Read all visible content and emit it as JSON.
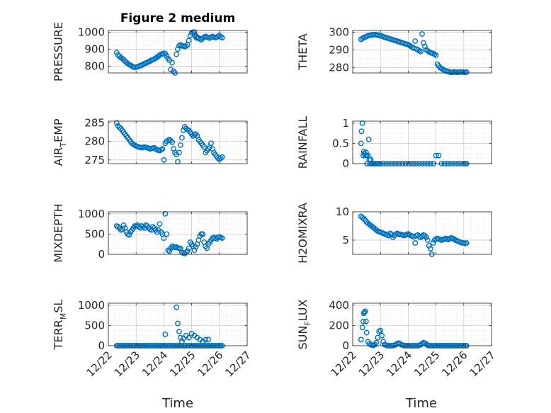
{
  "figure": {
    "title": "Figure 2 medium",
    "xlabel": "Time",
    "marker_color": "#0072BD",
    "x_ticks": [
      "12/22",
      "12/23",
      "12/24",
      "12/25",
      "12/26",
      "12/27"
    ]
  },
  "chart_data": [
    {
      "type": "scatter",
      "title": "Figure 2 medium",
      "ylabel": "PRESSURE",
      "ylabel_sub": "",
      "ylim": [
        760,
        1010
      ],
      "yticks": [
        800,
        900,
        1000
      ],
      "grid": true,
      "xlim": [
        0,
        5
      ],
      "x": [
        0.3,
        0.35,
        0.4,
        0.45,
        0.5,
        0.55,
        0.6,
        0.65,
        0.7,
        0.75,
        0.8,
        0.85,
        0.9,
        0.95,
        1.0,
        1.05,
        1.1,
        1.15,
        1.2,
        1.25,
        1.3,
        1.35,
        1.4,
        1.45,
        1.5,
        1.55,
        1.6,
        1.65,
        1.7,
        1.75,
        1.8,
        1.85,
        1.9,
        1.95,
        2.0,
        2.05,
        2.1,
        2.15,
        2.2,
        2.25,
        2.3,
        2.35,
        2.4,
        2.45,
        2.5,
        2.55,
        2.6,
        2.65,
        2.7,
        2.75,
        2.8,
        2.85,
        2.9,
        2.95,
        3.0,
        3.05,
        3.1,
        3.12,
        3.15,
        3.18,
        3.2,
        3.25,
        3.3,
        3.35,
        3.4,
        3.45,
        3.5,
        3.55,
        3.6,
        3.65,
        3.7,
        3.75,
        3.8,
        3.85,
        3.9,
        3.95,
        4.0,
        4.05,
        4.1
      ],
      "y": [
        880,
        865,
        858,
        850,
        845,
        838,
        830,
        822,
        815,
        810,
        805,
        800,
        795,
        793,
        795,
        797,
        800,
        803,
        806,
        810,
        815,
        818,
        822,
        826,
        830,
        835,
        838,
        842,
        847,
        852,
        858,
        865,
        870,
        873,
        876,
        873,
        860,
        845,
        835,
        780,
        820,
        770,
        760,
        870,
        900,
        920,
        925,
        920,
        918,
        915,
        918,
        925,
        950,
        980,
        995,
        1000,
        1000,
        985,
        970,
        975,
        965,
        965,
        960,
        955,
        965,
        970,
        975,
        972,
        968,
        965,
        970,
        975,
        972,
        968,
        970,
        975,
        980,
        972,
        968
      ],
      "series": [
        {
          "name": "",
          "values_ref": "y"
        }
      ]
    },
    {
      "type": "scatter",
      "title": "",
      "ylabel": "THETA",
      "ylabel_sub": "",
      "ylim": [
        277,
        301
      ],
      "yticks": [
        280,
        290,
        300
      ],
      "grid": true,
      "xlim": [
        0,
        5
      ],
      "x": [
        0.3,
        0.35,
        0.4,
        0.45,
        0.5,
        0.55,
        0.6,
        0.65,
        0.7,
        0.75,
        0.8,
        0.85,
        0.9,
        0.95,
        1.0,
        1.05,
        1.1,
        1.15,
        1.2,
        1.25,
        1.3,
        1.35,
        1.4,
        1.45,
        1.5,
        1.55,
        1.6,
        1.65,
        1.7,
        1.75,
        1.8,
        1.85,
        1.9,
        1.95,
        2.0,
        2.05,
        2.1,
        2.15,
        2.2,
        2.25,
        2.3,
        2.35,
        2.4,
        2.45,
        2.5,
        2.55,
        2.6,
        2.65,
        2.7,
        2.75,
        2.8,
        2.85,
        2.9,
        2.95,
        3.0,
        3.05,
        3.1,
        3.15,
        3.2,
        3.25,
        3.3,
        3.35,
        3.4,
        3.45,
        3.5,
        3.55,
        3.6,
        3.65,
        3.7,
        3.75,
        3.8,
        3.85,
        3.9,
        3.95,
        4.0,
        4.05,
        4.1
      ],
      "y": [
        296,
        296.5,
        297,
        297.3,
        297.6,
        298,
        298.2,
        298.3,
        298.5,
        298.6,
        298.7,
        298.5,
        298.4,
        298.2,
        298,
        297.8,
        297.5,
        297.2,
        297,
        296.7,
        296.5,
        296.2,
        296,
        295.7,
        295.5,
        295.2,
        295,
        294.7,
        294.5,
        294.2,
        294,
        293.7,
        293.5,
        293.2,
        293,
        292.5,
        292,
        291.5,
        291,
        295,
        290.5,
        290,
        289.5,
        289.2,
        299,
        294,
        292,
        290,
        289.5,
        289,
        288.5,
        288.2,
        288,
        287.5,
        287,
        282,
        281,
        280,
        279.5,
        279,
        278.5,
        278.2,
        278,
        277.8,
        277.5,
        277.3,
        277.4,
        277.6,
        277.5,
        277.3,
        277.4,
        277.5,
        277.6,
        277.5,
        277.4,
        277.3,
        277.5
      ],
      "series": [
        {
          "name": "",
          "values_ref": "y"
        }
      ]
    },
    {
      "type": "scatter",
      "title": "",
      "ylabel": "AIR",
      "ylabel_sub": "T",
      "ylabel_rest": "EMP",
      "ylim": [
        274,
        285.5
      ],
      "yticks": [
        275,
        280,
        285
      ],
      "grid": true,
      "xlim": [
        0,
        5
      ],
      "x": [
        0.3,
        0.35,
        0.4,
        0.45,
        0.5,
        0.55,
        0.6,
        0.65,
        0.7,
        0.75,
        0.8,
        0.85,
        0.9,
        0.95,
        1.0,
        1.05,
        1.1,
        1.15,
        1.2,
        1.25,
        1.3,
        1.35,
        1.4,
        1.45,
        1.5,
        1.55,
        1.6,
        1.65,
        1.7,
        1.75,
        1.8,
        1.85,
        1.9,
        1.95,
        2.0,
        2.05,
        2.1,
        2.15,
        2.2,
        2.25,
        2.3,
        2.35,
        2.4,
        2.45,
        2.5,
        2.55,
        2.6,
        2.65,
        2.7,
        2.75,
        2.8,
        2.85,
        2.9,
        2.95,
        3.0,
        3.05,
        3.1,
        3.15,
        3.2,
        3.25,
        3.3,
        3.35,
        3.4,
        3.45,
        3.5,
        3.55,
        3.6,
        3.65,
        3.7,
        3.75,
        3.8,
        3.85,
        3.9,
        3.95,
        4.0,
        4.05,
        4.1
      ],
      "y": [
        285,
        284.2,
        283.8,
        283.5,
        283,
        282.5,
        282,
        281.5,
        281,
        280.5,
        280,
        279.5,
        279.2,
        279,
        278.8,
        278.6,
        278.5,
        278.4,
        278.3,
        278.4,
        278.5,
        278.4,
        278.3,
        278.2,
        278,
        278.1,
        278.2,
        278.3,
        278,
        277.8,
        277.6,
        277.5,
        277.8,
        278,
        275,
        279.5,
        280,
        280.3,
        280.5,
        280.2,
        279.8,
        278,
        277,
        276.5,
        274.5,
        277,
        279,
        281,
        283,
        284,
        283.5,
        283.2,
        283,
        282.5,
        282,
        281.5,
        281.8,
        282,
        281.5,
        280.5,
        280,
        279.5,
        279,
        278.5,
        277,
        277.5,
        278,
        278.5,
        279.5,
        278,
        277,
        276.5,
        276,
        275.5,
        275.2,
        275.5,
        275.8
      ],
      "series": [
        {
          "name": "",
          "values_ref": "y"
        }
      ]
    },
    {
      "type": "scatter",
      "title": "",
      "ylabel": "RAINFALL",
      "ylabel_sub": "",
      "ylim": [
        0,
        1.05
      ],
      "yticks": [
        0,
        0.5,
        1
      ],
      "grid": true,
      "xlim": [
        0,
        5
      ],
      "x": [
        0.3,
        0.32,
        0.35,
        0.38,
        0.4,
        0.42,
        0.45,
        0.48,
        0.5,
        0.52,
        0.55,
        0.58,
        0.6,
        0.62,
        0.65,
        0.68,
        0.7,
        0.75,
        0.8,
        0.85,
        0.9,
        0.95,
        1.0,
        1.1,
        1.2,
        1.3,
        1.4,
        1.5,
        1.6,
        1.7,
        1.8,
        1.9,
        2.0,
        2.1,
        2.2,
        2.3,
        2.4,
        2.5,
        2.6,
        2.7,
        2.8,
        2.9,
        3.0,
        3.1,
        3.2,
        3.3,
        3.4,
        3.5,
        3.6,
        3.7,
        3.8,
        3.9,
        4.0,
        4.05,
        4.1
      ],
      "y": [
        0.5,
        0.8,
        1.0,
        0.2,
        0.3,
        0.25,
        0.2,
        0.28,
        0.2,
        0,
        0.2,
        0.6,
        0.1,
        0,
        0.1,
        0,
        0,
        0,
        0,
        0,
        0,
        0,
        0,
        0,
        0,
        0,
        0,
        0,
        0,
        0,
        0,
        0,
        0,
        0,
        0,
        0,
        0,
        0,
        0,
        0,
        0,
        0,
        0.2,
        0.2,
        0,
        0,
        0,
        0,
        0,
        0,
        0,
        0,
        0,
        0,
        0
      ],
      "series": [
        {
          "name": "",
          "values_ref": "y"
        }
      ]
    },
    {
      "type": "scatter",
      "title": "",
      "ylabel": "MIXDEPTH",
      "ylabel_sub": "",
      "ylim": [
        0,
        1050
      ],
      "yticks": [
        0,
        500,
        1000
      ],
      "grid": true,
      "xlim": [
        0,
        5
      ],
      "x": [
        0.3,
        0.35,
        0.4,
        0.45,
        0.5,
        0.55,
        0.6,
        0.65,
        0.7,
        0.75,
        0.8,
        0.85,
        0.9,
        0.95,
        1.0,
        1.05,
        1.1,
        1.15,
        1.2,
        1.25,
        1.3,
        1.35,
        1.4,
        1.45,
        1.5,
        1.55,
        1.6,
        1.65,
        1.7,
        1.75,
        1.8,
        1.85,
        1.9,
        1.95,
        2.0,
        2.05,
        2.1,
        2.15,
        2.2,
        2.25,
        2.3,
        2.35,
        2.4,
        2.45,
        2.5,
        2.55,
        2.6,
        2.65,
        2.7,
        2.75,
        2.8,
        2.85,
        2.9,
        2.95,
        3.0,
        3.05,
        3.1,
        3.15,
        3.2,
        3.25,
        3.3,
        3.35,
        3.4,
        3.45,
        3.5,
        3.55,
        3.6,
        3.65,
        3.7,
        3.75,
        3.8,
        3.85,
        3.9,
        3.95,
        4.0,
        4.05,
        4.1
      ],
      "y": [
        700,
        680,
        650,
        600,
        620,
        720,
        650,
        550,
        500,
        480,
        550,
        600,
        650,
        700,
        700,
        720,
        680,
        650,
        700,
        680,
        650,
        720,
        700,
        650,
        620,
        600,
        680,
        650,
        600,
        550,
        600,
        750,
        550,
        500,
        400,
        1000,
        500,
        100,
        80,
        150,
        200,
        180,
        170,
        180,
        160,
        150,
        140,
        50,
        30,
        20,
        50,
        80,
        150,
        300,
        250,
        200,
        100,
        180,
        250,
        350,
        450,
        500,
        500,
        300,
        200,
        150,
        250,
        300,
        350,
        400,
        420,
        400,
        380,
        420,
        430,
        410,
        400
      ],
      "series": [
        {
          "name": "",
          "values_ref": "y"
        }
      ]
    },
    {
      "type": "scatter",
      "title": "",
      "ylabel": "H2OMIXRA",
      "ylabel_sub": "",
      "ylim": [
        2.5,
        10
      ],
      "yticks": [
        5,
        10
      ],
      "grid": true,
      "xlim": [
        0,
        5
      ],
      "x": [
        0.3,
        0.35,
        0.4,
        0.45,
        0.5,
        0.55,
        0.6,
        0.65,
        0.7,
        0.75,
        0.8,
        0.85,
        0.9,
        0.95,
        1.0,
        1.05,
        1.1,
        1.15,
        1.2,
        1.25,
        1.3,
        1.35,
        1.4,
        1.45,
        1.5,
        1.55,
        1.6,
        1.65,
        1.7,
        1.75,
        1.8,
        1.85,
        1.9,
        1.95,
        2.0,
        2.05,
        2.1,
        2.15,
        2.2,
        2.25,
        2.3,
        2.35,
        2.4,
        2.45,
        2.5,
        2.55,
        2.6,
        2.65,
        2.7,
        2.75,
        2.8,
        2.85,
        2.9,
        2.95,
        3.0,
        3.05,
        3.1,
        3.15,
        3.2,
        3.25,
        3.3,
        3.35,
        3.4,
        3.45,
        3.5,
        3.55,
        3.6,
        3.65,
        3.7,
        3.75,
        3.8,
        3.85,
        3.9,
        3.95,
        4.0,
        4.05,
        4.1
      ],
      "y": [
        9.2,
        9,
        8.8,
        8.5,
        8.2,
        8,
        7.8,
        7.6,
        7.4,
        7.2,
        7,
        6.8,
        6.6,
        6.5,
        6.4,
        6.3,
        6.2,
        6.1,
        6,
        5.9,
        5.8,
        6.2,
        6,
        5.5,
        5.8,
        6,
        6.2,
        6.1,
        6,
        6,
        5.9,
        5.8,
        5.9,
        6,
        6.1,
        5.9,
        5.8,
        5.7,
        5.6,
        4.5,
        5.8,
        5.9,
        5.6,
        5.5,
        5.7,
        5.9,
        5.8,
        5.5,
        5,
        4,
        3.5,
        2.5,
        4.5,
        5,
        5.2,
        5.3,
        5.2,
        5.1,
        5,
        5.1,
        5.2,
        5.3,
        5.2,
        5.1,
        5.3,
        5.4,
        5.3,
        5.2,
        5,
        4.9,
        4.8,
        4.7,
        4.6,
        4.5,
        4.5,
        4.4,
        4.5
      ],
      "series": [
        {
          "name": "",
          "values_ref": "y"
        }
      ]
    },
    {
      "type": "scatter",
      "title": "",
      "ylabel": "TERR",
      "ylabel_sub": "M",
      "ylabel_rest": "SL",
      "ylim": [
        0,
        1050
      ],
      "yticks": [
        0,
        500,
        1000
      ],
      "grid": true,
      "xlim": [
        0,
        5
      ],
      "x": [
        0.3,
        0.35,
        0.4,
        0.45,
        0.5,
        0.55,
        0.6,
        0.65,
        0.7,
        0.75,
        0.8,
        0.85,
        0.9,
        0.95,
        1.0,
        1.05,
        1.1,
        1.15,
        1.2,
        1.25,
        1.3,
        1.35,
        1.4,
        1.45,
        1.5,
        1.55,
        1.6,
        1.65,
        1.7,
        1.75,
        1.8,
        1.85,
        1.9,
        1.95,
        2.0,
        2.05,
        2.1,
        2.15,
        2.2,
        2.25,
        2.3,
        2.35,
        2.4,
        2.45,
        2.5,
        2.55,
        2.6,
        2.65,
        2.7,
        2.75,
        2.8,
        2.85,
        2.9,
        2.95,
        3.0,
        3.05,
        3.1,
        3.15,
        3.2,
        3.25,
        3.3,
        3.35,
        3.4,
        3.45,
        3.5,
        3.55,
        3.6,
        3.65,
        3.7,
        3.75,
        3.8,
        3.85,
        3.9,
        3.95,
        4.0,
        4.05,
        4.1,
        2.05,
        2.45,
        2.5,
        2.55,
        2.6,
        2.65,
        2.7,
        2.8,
        2.9,
        3.0,
        3.1,
        3.2,
        3.3,
        3.4,
        3.5,
        3.6
      ],
      "y": [
        0,
        0,
        0,
        0,
        0,
        0,
        0,
        0,
        0,
        0,
        0,
        0,
        0,
        0,
        0,
        0,
        0,
        0,
        0,
        0,
        0,
        0,
        0,
        0,
        0,
        0,
        0,
        0,
        0,
        0,
        0,
        0,
        0,
        0,
        0,
        0,
        0,
        0,
        0,
        0,
        0,
        0,
        0,
        0,
        0,
        0,
        0,
        0,
        0,
        0,
        0,
        0,
        0,
        0,
        0,
        0,
        0,
        0,
        0,
        0,
        0,
        0,
        0,
        0,
        0,
        0,
        0,
        0,
        0,
        0,
        0,
        0,
        0,
        0,
        0,
        0,
        0,
        280,
        950,
        550,
        350,
        200,
        100,
        180,
        250,
        200,
        300,
        250,
        200,
        150,
        100,
        150,
        150
      ],
      "series": [
        {
          "name": "",
          "values_ref": "y"
        }
      ]
    },
    {
      "type": "scatter",
      "title": "",
      "ylabel": "SUN",
      "ylabel_sub": "F",
      "ylabel_rest": "LUX",
      "ylim": [
        0,
        420
      ],
      "yticks": [
        0,
        200,
        400
      ],
      "grid": true,
      "xlim": [
        0,
        5
      ],
      "x": [
        0.3,
        0.35,
        0.38,
        0.4,
        0.42,
        0.45,
        0.48,
        0.5,
        0.55,
        0.6,
        0.65,
        0.7,
        0.75,
        0.8,
        0.85,
        0.9,
        0.95,
        1.0,
        1.05,
        1.1,
        1.15,
        1.2,
        1.25,
        1.3,
        1.35,
        1.4,
        1.45,
        1.5,
        1.55,
        1.6,
        1.65,
        1.7,
        1.75,
        1.8,
        1.85,
        1.9,
        1.95,
        2.0,
        2.05,
        2.1,
        2.15,
        2.2,
        2.25,
        2.3,
        2.35,
        2.4,
        2.45,
        2.5,
        2.55,
        2.6,
        2.65,
        2.7,
        2.75,
        2.8,
        2.85,
        2.9,
        2.95,
        3.0,
        3.05,
        3.1,
        3.15,
        3.2,
        3.25,
        3.3,
        3.35,
        3.4,
        3.45,
        3.5,
        3.55,
        3.6,
        3.65,
        3.7,
        3.75,
        3.8,
        3.85,
        3.9,
        3.95,
        4.0,
        4.05,
        4.1
      ],
      "y": [
        60,
        180,
        240,
        320,
        330,
        340,
        240,
        130,
        40,
        20,
        10,
        5,
        5,
        10,
        30,
        80,
        140,
        150,
        100,
        40,
        10,
        5,
        0,
        0,
        0,
        0,
        0,
        5,
        10,
        20,
        25,
        20,
        10,
        5,
        0,
        0,
        0,
        0,
        0,
        0,
        0,
        0,
        0,
        0,
        0,
        5,
        10,
        20,
        30,
        25,
        15,
        5,
        0,
        0,
        0,
        0,
        0,
        0,
        0,
        0,
        0,
        0,
        0,
        0,
        0,
        0,
        0,
        0,
        0,
        0,
        0,
        0,
        0,
        0,
        0,
        0,
        0,
        0,
        0,
        0
      ],
      "series": [
        {
          "name": "",
          "values_ref": "y"
        }
      ]
    }
  ]
}
